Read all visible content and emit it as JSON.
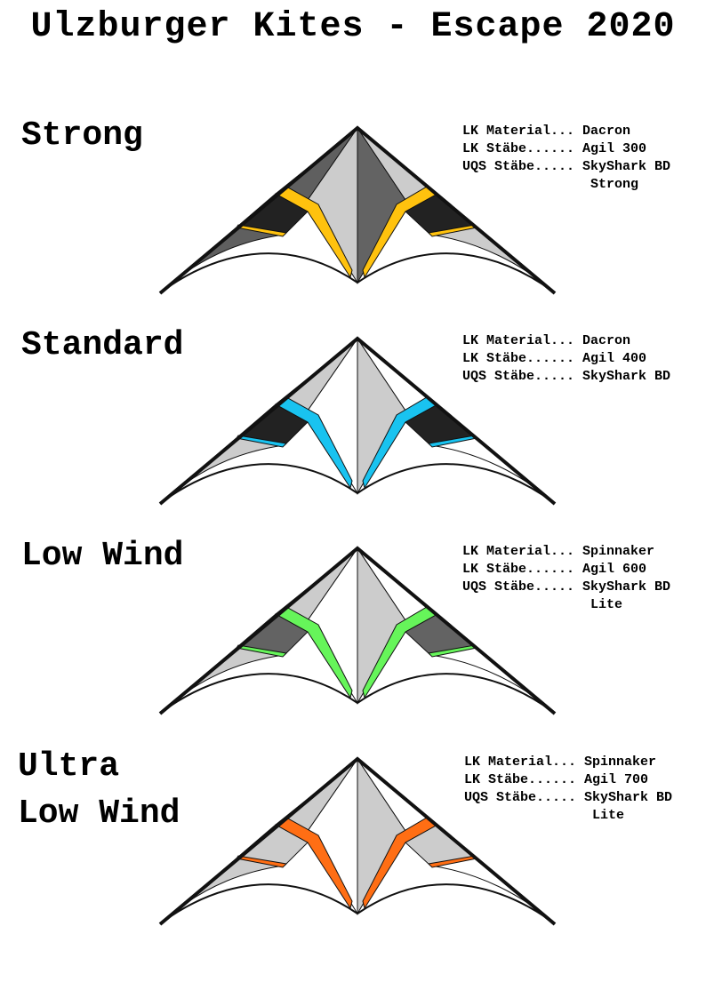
{
  "title": "Ulzburger Kites - Escape 2020",
  "variants": [
    {
      "name_lines": [
        "Strong"
      ],
      "colors": {
        "top_wing": "#5f5f5f",
        "top_inner": "#cccccc",
        "center_right": "#636363",
        "pocket": "#222222",
        "leading": "#5f5f5f",
        "trailing": "#cccccc",
        "accent": "#ffc20e"
      },
      "specs": [
        {
          "label": "LK Material...",
          "value": "Dacron"
        },
        {
          "label": "LK Stäbe......",
          "value": "Agil 300"
        },
        {
          "label": "UQS Stäbe.....",
          "value": "SkyShark BD"
        },
        {
          "label": "",
          "value": "Strong"
        }
      ]
    },
    {
      "name_lines": [
        "Standard"
      ],
      "colors": {
        "top_wing": "#cccccc",
        "top_inner": "#ffffff",
        "center_right": "#cccccc",
        "pocket": "#222222",
        "leading": "#cccccc",
        "trailing": "#ffffff",
        "accent": "#19c3f0"
      },
      "specs": [
        {
          "label": "LK Material...",
          "value": "Dacron"
        },
        {
          "label": "LK Stäbe......",
          "value": "Agil 400"
        },
        {
          "label": "UQS Stäbe.....",
          "value": "SkyShark BD"
        }
      ]
    },
    {
      "name_lines": [
        "Low Wind"
      ],
      "colors": {
        "top_wing": "#cccccc",
        "top_inner": "#ffffff",
        "center_right": "#cccccc",
        "pocket": "#636363",
        "leading": "#cccccc",
        "trailing": "#ffffff",
        "accent": "#66f55a"
      },
      "specs": [
        {
          "label": "LK Material...",
          "value": "Spinnaker"
        },
        {
          "label": "LK Stäbe......",
          "value": "Agil 600"
        },
        {
          "label": "UQS Stäbe.....",
          "value": "SkyShark BD"
        },
        {
          "label": "",
          "value": "Lite"
        }
      ]
    },
    {
      "name_lines": [
        "Ultra",
        "Low Wind"
      ],
      "colors": {
        "top_wing": "#cccccc",
        "top_inner": "#ffffff",
        "center_right": "#cccccc",
        "pocket": "#cccccc",
        "leading": "#cccccc",
        "trailing": "#ffffff",
        "accent": "#ff6e14"
      },
      "specs": [
        {
          "label": "LK Material...",
          "value": "Spinnaker"
        },
        {
          "label": "LK Stäbe......",
          "value": "Agil 700"
        },
        {
          "label": "UQS Stäbe.....",
          "value": "SkyShark BD"
        },
        {
          "label": "",
          "value": "Lite"
        }
      ]
    }
  ]
}
